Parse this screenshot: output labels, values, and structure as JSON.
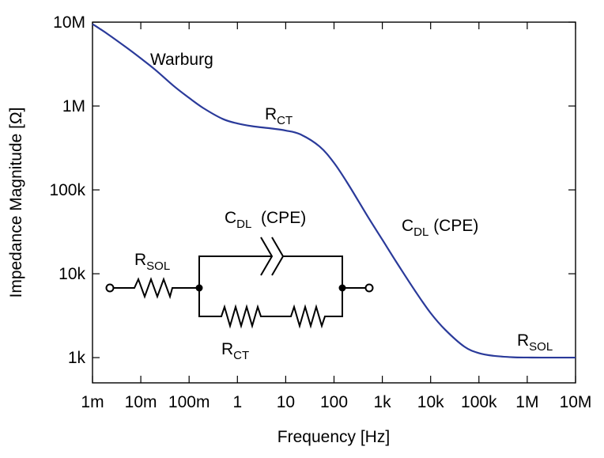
{
  "chart_data": {
    "type": "line",
    "title": "",
    "xlabel": "Frequency [Hz]",
    "ylabel": "Impedance Magnitude [Ω]",
    "xscale": "log",
    "yscale": "log",
    "xlim": [
      0.001,
      10000000
    ],
    "ylim": [
      500,
      10000000
    ],
    "grid": false,
    "line_color": "#2a3a9a",
    "x_ticks": [
      {
        "value": 0.001,
        "label": "1m"
      },
      {
        "value": 0.01,
        "label": "10m"
      },
      {
        "value": 0.1,
        "label": "100m"
      },
      {
        "value": 1,
        "label": "1"
      },
      {
        "value": 10,
        "label": "10"
      },
      {
        "value": 100,
        "label": "100"
      },
      {
        "value": 1000,
        "label": "1k"
      },
      {
        "value": 10000,
        "label": "10k"
      },
      {
        "value": 100000,
        "label": "100k"
      },
      {
        "value": 1000000,
        "label": "1M"
      },
      {
        "value": 10000000,
        "label": "10M"
      }
    ],
    "y_ticks": [
      {
        "value": 1000,
        "label": "1k"
      },
      {
        "value": 10000,
        "label": "10k"
      },
      {
        "value": 100000,
        "label": "100k"
      },
      {
        "value": 1000000,
        "label": "1M"
      },
      {
        "value": 10000000,
        "label": "10M"
      }
    ],
    "series": [
      {
        "x": [
          0.001,
          0.002,
          0.005,
          0.01,
          0.02,
          0.05,
          0.1,
          0.2,
          0.5,
          1,
          2,
          5,
          10,
          20,
          50,
          100,
          200,
          500,
          1000,
          2000,
          5000,
          10000,
          20000,
          50000,
          100000,
          200000,
          500000,
          1000000,
          2000000,
          5000000,
          10000000
        ],
        "y": [
          9500000,
          7300000,
          5000000,
          3700000,
          2700000,
          1700000,
          1250000,
          940000,
          700000,
          620000,
          575000,
          540000,
          510000,
          460000,
          330000,
          210000,
          115000,
          48000,
          25500,
          13500,
          6000,
          3400,
          2150,
          1350,
          1130,
          1050,
          1010,
          1003,
          1001,
          1000,
          1000
        ]
      }
    ],
    "annotations": {
      "warburg": "Warburg",
      "rct_curve_main": "R",
      "rct_curve_sub": "CT",
      "cdl_curve_main": "C",
      "cdl_curve_sub": "DL",
      "cdl_curve_suffix": " (CPE)",
      "rsol_curve_main": "R",
      "rsol_curve_sub": "SOL"
    }
  },
  "circuit": {
    "rsol_main": "R",
    "rsol_sub": "SOL",
    "cdl_main": "C",
    "cdl_sub": "DL",
    "cdl_suffix": "  (CPE)",
    "rct_main": "R",
    "rct_sub": "CT"
  }
}
